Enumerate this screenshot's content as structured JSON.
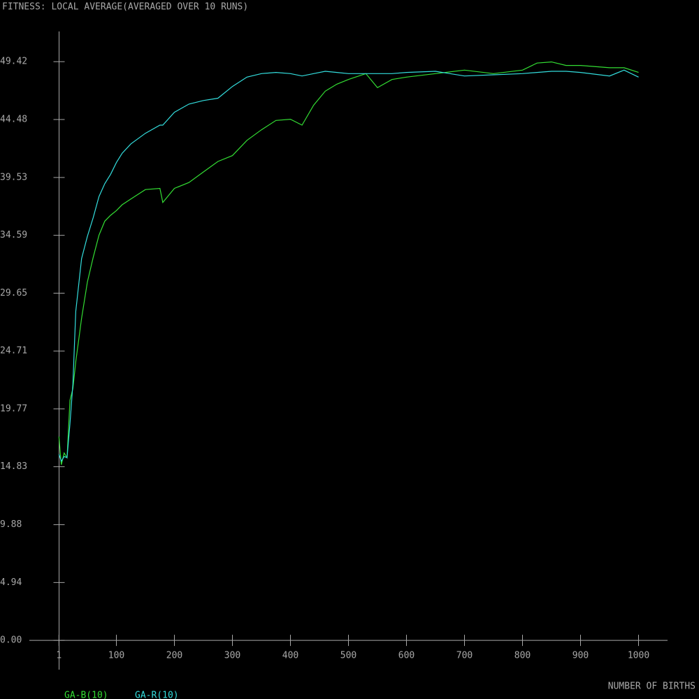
{
  "chart_data": {
    "type": "line",
    "title": "FITNESS: LOCAL AVERAGE(AVERAGED OVER 10 RUNS)",
    "x_label": "NUMBER OF BIRTHS",
    "x": [
      1,
      5,
      10,
      15,
      20,
      25,
      30,
      40,
      50,
      60,
      70,
      80,
      90,
      100,
      110,
      125,
      150,
      175,
      180,
      200,
      225,
      250,
      275,
      300,
      325,
      350,
      375,
      400,
      420,
      440,
      460,
      480,
      500,
      530,
      550,
      575,
      600,
      650,
      700,
      750,
      800,
      825,
      850,
      875,
      900,
      950,
      975,
      1000
    ],
    "series": [
      {
        "name": "GA-B(10)",
        "color": "#33dd33",
        "values": [
          17.4,
          15.0,
          16.0,
          15.6,
          20.5,
          21.5,
          23.8,
          27.5,
          30.6,
          32.7,
          34.6,
          35.8,
          36.3,
          36.7,
          37.2,
          37.7,
          38.5,
          38.6,
          37.4,
          38.6,
          39.1,
          40.0,
          40.9,
          41.4,
          42.7,
          43.6,
          44.4,
          44.5,
          44.0,
          45.7,
          46.9,
          47.5,
          47.9,
          48.4,
          47.2,
          47.9,
          48.1,
          48.4,
          48.7,
          48.4,
          48.7,
          49.3,
          49.4,
          49.1,
          49.1,
          48.9,
          48.9,
          48.5
        ]
      },
      {
        "name": "GA-R(10)",
        "color": "#33dddd",
        "values": [
          15.9,
          15.3,
          15.7,
          15.6,
          18.5,
          21.9,
          28.1,
          32.6,
          34.5,
          36.1,
          37.9,
          39.0,
          39.8,
          40.8,
          41.6,
          42.4,
          43.3,
          44.0,
          44.0,
          45.1,
          45.8,
          46.1,
          46.3,
          47.3,
          48.1,
          48.4,
          48.5,
          48.4,
          48.2,
          48.4,
          48.6,
          48.5,
          48.4,
          48.4,
          48.4,
          48.4,
          48.5,
          48.6,
          48.2,
          48.3,
          48.4,
          48.5,
          48.6,
          48.6,
          48.5,
          48.2,
          48.7,
          48.1
        ]
      }
    ],
    "xlim": [
      -50,
      1050
    ],
    "ylim": [
      -2.5,
      52
    ],
    "xticks": [
      1,
      100,
      200,
      300,
      400,
      500,
      600,
      700,
      800,
      900,
      1000
    ],
    "yticks": [
      {
        "value": 0,
        "label": "0.00"
      },
      4.94,
      9.88,
      14.83,
      19.77,
      24.71,
      29.65,
      34.59,
      39.53,
      44.48,
      49.42
    ]
  }
}
